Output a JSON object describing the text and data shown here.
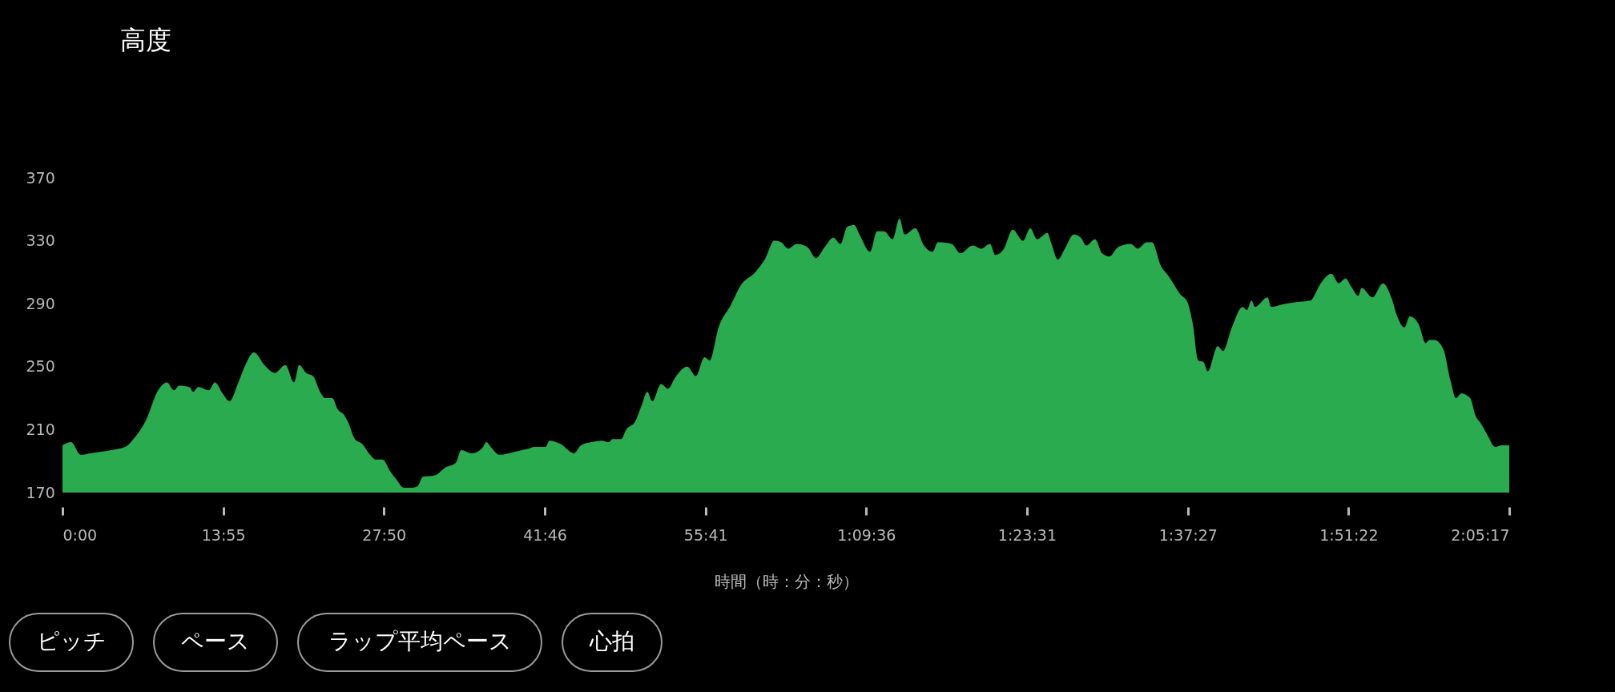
{
  "chart_data": {
    "type": "area",
    "title": "高度",
    "xlabel": "時間（時：分：秒）",
    "annotations": [
      "ピッチ",
      "ペース",
      "ラップ平均ペース",
      "心拍"
    ],
    "xlim": [
      0,
      7517
    ],
    "ylim": [
      170,
      370
    ],
    "yticks": [
      170,
      210,
      250,
      290,
      330,
      370
    ],
    "xticks": [
      {
        "value": 0,
        "label": "0:00"
      },
      {
        "value": 835,
        "label": "13:55"
      },
      {
        "value": 1670,
        "label": "27:50"
      },
      {
        "value": 2506,
        "label": "41:46"
      },
      {
        "value": 3341,
        "label": "55:41"
      },
      {
        "value": 4176,
        "label": "1:09:36"
      },
      {
        "value": 5011,
        "label": "1:23:31"
      },
      {
        "value": 5847,
        "label": "1:37:27"
      },
      {
        "value": 6682,
        "label": "1:51:22"
      },
      {
        "value": 7517,
        "label": "2:05:17"
      }
    ],
    "grid": false,
    "x": [
      0,
      45,
      94,
      145,
      253,
      326,
      362,
      434,
      497,
      543,
      579,
      606,
      660,
      678,
      706,
      760,
      792,
      832,
      868,
      914,
      950,
      995,
      1049,
      1103,
      1158,
      1203,
      1230,
      1266,
      1302,
      1338,
      1366,
      1402,
      1429,
      1465,
      1483,
      1519,
      1556,
      1592,
      1628,
      1664,
      1700,
      1737,
      1773,
      1809,
      1845,
      1872,
      1936,
      1990,
      2044,
      2071,
      2126,
      2180,
      2203,
      2225,
      2270,
      2352,
      2424,
      2451,
      2509,
      2531,
      2586,
      2658,
      2694,
      2748,
      2803,
      2839,
      2857,
      2902,
      2929,
      2975,
      3011,
      3038,
      3065,
      3110,
      3147,
      3183,
      3246,
      3291,
      3336,
      3363,
      3409,
      3472,
      3526,
      3599,
      3653,
      3698,
      3734,
      3770,
      3816,
      3870,
      3915,
      3960,
      4005,
      4042,
      4078,
      4114,
      4141,
      4196,
      4232,
      4268,
      4313,
      4349,
      4376,
      4431,
      4476,
      4521,
      4548,
      4620,
      4665,
      4729,
      4774,
      4819,
      4847,
      4892,
      4937,
      4991,
      5028,
      5064,
      5118,
      5136,
      5172,
      5208,
      5254,
      5291,
      5319,
      5365,
      5402,
      5439,
      5485,
      5550,
      5587,
      5633,
      5661,
      5707,
      5744,
      5808,
      5845,
      5873,
      5901,
      5928,
      5950,
      6002,
      6030,
      6076,
      6131,
      6154,
      6178,
      6196,
      6261,
      6280,
      6354,
      6409,
      6483,
      6538,
      6593,
      6630,
      6667,
      6695,
      6732,
      6750,
      6806,
      6861,
      6907,
      6935,
      6972,
      7000,
      7046,
      7083,
      7101,
      7129,
      7175,
      7212,
      7240,
      7268,
      7314,
      7341,
      7369,
      7406,
      7443,
      7480,
      7508,
      7517
    ],
    "series": [
      {
        "color": "#2aab50",
        "values": [
          200,
          202,
          194,
          195,
          197,
          199,
          203,
          216,
          235,
          240,
          235,
          238,
          237,
          234,
          237,
          235,
          240,
          233,
          228,
          240,
          251,
          259,
          251,
          246,
          251,
          240,
          251,
          246,
          244,
          234,
          230,
          230,
          223,
          219,
          215,
          204,
          201,
          195,
          191,
          191,
          184,
          178,
          173,
          173,
          174,
          180,
          181,
          186,
          189,
          197,
          195,
          198,
          202,
          199,
          194,
          196,
          198,
          199,
          199,
          203,
          201,
          195,
          200,
          202,
          203,
          202,
          204,
          204,
          210,
          215,
          226,
          234,
          228,
          239,
          236,
          243,
          250,
          244,
          256,
          254,
          275,
          289,
          302,
          310,
          319,
          330,
          329,
          325,
          328,
          326,
          319,
          326,
          332,
          328,
          339,
          340,
          334,
          323,
          336,
          336,
          331,
          344,
          334,
          338,
          327,
          323,
          329,
          328,
          322,
          327,
          325,
          328,
          321,
          325,
          337,
          330,
          338,
          331,
          335,
          329,
          318,
          325,
          334,
          332,
          327,
          331,
          322,
          320,
          326,
          328,
          325,
          329,
          329,
          314,
          308,
          296,
          291,
          277,
          254,
          253,
          247,
          263,
          260,
          275,
          288,
          286,
          292,
          288,
          294,
          288,
          290,
          291,
          292,
          303,
          309,
          303,
          306,
          301,
          295,
          300,
          294,
          303,
          293,
          282,
          275,
          282,
          277,
          265,
          267,
          267,
          261,
          241,
          230,
          233,
          230,
          219,
          214,
          206,
          199,
          200,
          200,
          200
        ]
      }
    ]
  }
}
